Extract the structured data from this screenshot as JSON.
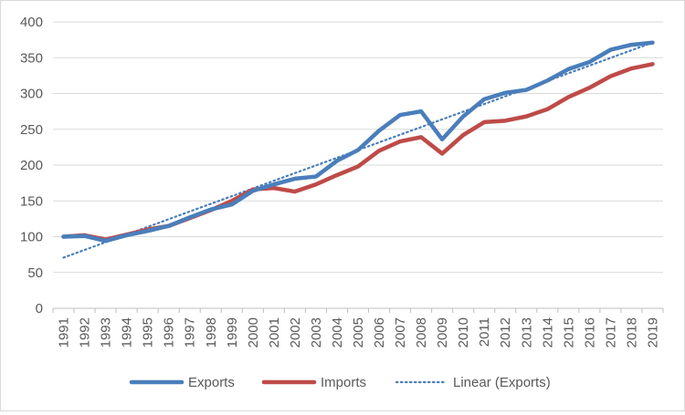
{
  "chart_data": {
    "type": "line",
    "title": "",
    "xlabel": "",
    "ylabel": "",
    "categories": [
      "1991",
      "1992",
      "1993",
      "1994",
      "1995",
      "1996",
      "1997",
      "1998",
      "1999",
      "2000",
      "2001",
      "2002",
      "2003",
      "2004",
      "2005",
      "2006",
      "2007",
      "2008",
      "2009",
      "2010",
      "2011",
      "2012",
      "2013",
      "2014",
      "2015",
      "2016",
      "2017",
      "2018",
      "2019"
    ],
    "ylim": [
      0,
      400
    ],
    "yticks": [
      0,
      50,
      100,
      150,
      200,
      250,
      300,
      350,
      400
    ],
    "grid": true,
    "legend_position": "bottom",
    "series": [
      {
        "name": "Exports",
        "color": "#4a7ebb",
        "style": "solid",
        "values": [
          100,
          101,
          94,
          102,
          108,
          115,
          127,
          138,
          145,
          164,
          173,
          181,
          184,
          206,
          221,
          248,
          270,
          275,
          236,
          268,
          292,
          301,
          305,
          318,
          334,
          344,
          361,
          368,
          371
        ]
      },
      {
        "name": "Imports",
        "color": "#be4b48",
        "style": "solid",
        "values": [
          100,
          102,
          96,
          103,
          110,
          115,
          126,
          137,
          150,
          166,
          168,
          163,
          173,
          186,
          198,
          220,
          233,
          239,
          216,
          242,
          260,
          262,
          268,
          278,
          295,
          308,
          324,
          335,
          341
        ]
      },
      {
        "name": "Linear (Exports)",
        "color": "#4a7ebb",
        "style": "dotted",
        "values": [
          70.8,
          81.5,
          92.3,
          103.0,
          113.7,
          124.4,
          135.2,
          145.9,
          156.6,
          167.3,
          178.1,
          188.8,
          199.5,
          210.2,
          221.0,
          231.7,
          242.4,
          253.1,
          263.9,
          274.6,
          285.3,
          296.0,
          306.8,
          317.5,
          328.2,
          338.9,
          349.7,
          360.4,
          371.1
        ]
      }
    ]
  }
}
